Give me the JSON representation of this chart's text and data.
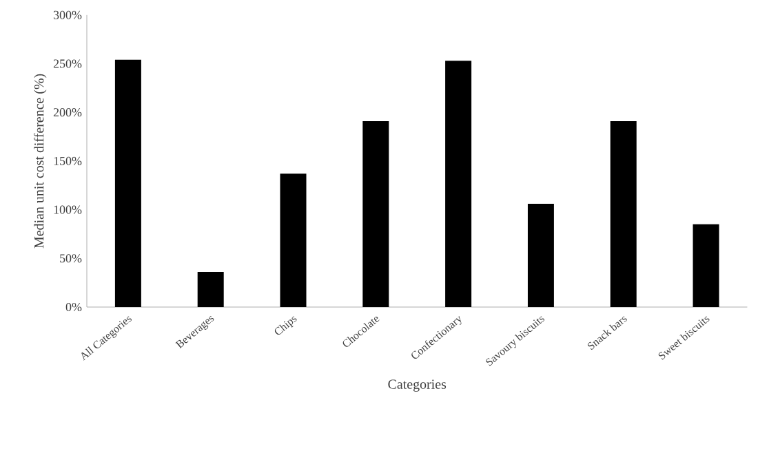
{
  "chart_data": {
    "type": "bar",
    "categories": [
      "All Categories",
      "Beverages",
      "Chips",
      "Chocolate",
      "Confectionary",
      "Savoury biscuits",
      "Snack bars",
      "Sweet biscuits"
    ],
    "values": [
      254,
      36,
      137,
      191,
      253,
      106,
      191,
      85
    ],
    "color": "#000000",
    "xlabel": "Categories",
    "ylabel": "Median unit cost difference (%)",
    "ylim": [
      0,
      300
    ],
    "yticks": [
      {
        "value": 0,
        "label": "0%"
      },
      {
        "value": 50,
        "label": "50%"
      },
      {
        "value": 100,
        "label": "100%"
      },
      {
        "value": 150,
        "label": "150%"
      },
      {
        "value": 200,
        "label": "200%"
      },
      {
        "value": 250,
        "label": "250%"
      },
      {
        "value": 300,
        "label": "300%"
      }
    ],
    "grid": false
  }
}
